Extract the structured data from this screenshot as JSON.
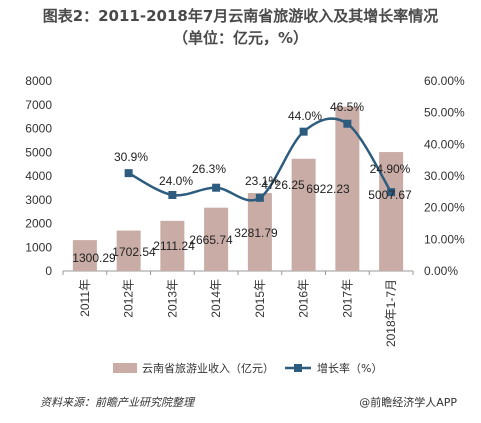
{
  "title": "图表2：2011-2018年7月云南省旅游收入及其增长率情况",
  "subtitle": "（单位：亿元，%）",
  "footer": {
    "source": "资料来源：前瞻产业研究院整理",
    "brand": "@前瞻经济学人APP"
  },
  "colors": {
    "bar": "#c8aca5",
    "line": "#2d5c7f",
    "grid": "#d9d9d9",
    "axis": "#999999"
  },
  "chart_data": {
    "type": "bar+line",
    "categories": [
      "2011年",
      "2012年",
      "2013年",
      "2014年",
      "2015年",
      "2016年",
      "2017年",
      "2018年1-7月"
    ],
    "series": [
      {
        "name": "云南省旅游业收入（亿元）",
        "type": "bar",
        "axis": "left",
        "values": [
          1300.29,
          1702.54,
          2111.24,
          2665.74,
          3281.79,
          4726.25,
          6922.23,
          5007.67
        ],
        "labels": [
          "1300.29",
          "1702.54",
          "2111.24",
          "2665.74",
          "3281.79",
          "4726.25",
          "6922.23",
          "5007.67"
        ]
      },
      {
        "name": "增长率（%）",
        "type": "line",
        "axis": "right",
        "values": [
          null,
          30.9,
          24.0,
          26.3,
          23.1,
          44.0,
          46.5,
          24.9
        ],
        "labels": [
          "",
          "30.9%",
          "24.0%",
          "26.3%",
          "23.1%",
          "44.0%",
          "46.5%",
          "24.90%"
        ]
      }
    ],
    "left_axis": {
      "min": 0,
      "max": 8000,
      "step": 1000,
      "ticks": [
        "0",
        "1000",
        "2000",
        "3000",
        "4000",
        "5000",
        "6000",
        "7000",
        "8000"
      ]
    },
    "right_axis": {
      "min": 0,
      "max": 60,
      "step": 10,
      "ticks": [
        "0.00%",
        "10.00%",
        "20.00%",
        "30.00%",
        "40.00%",
        "50.00%",
        "60.00%"
      ]
    },
    "grid": false,
    "legend_position": "bottom"
  }
}
